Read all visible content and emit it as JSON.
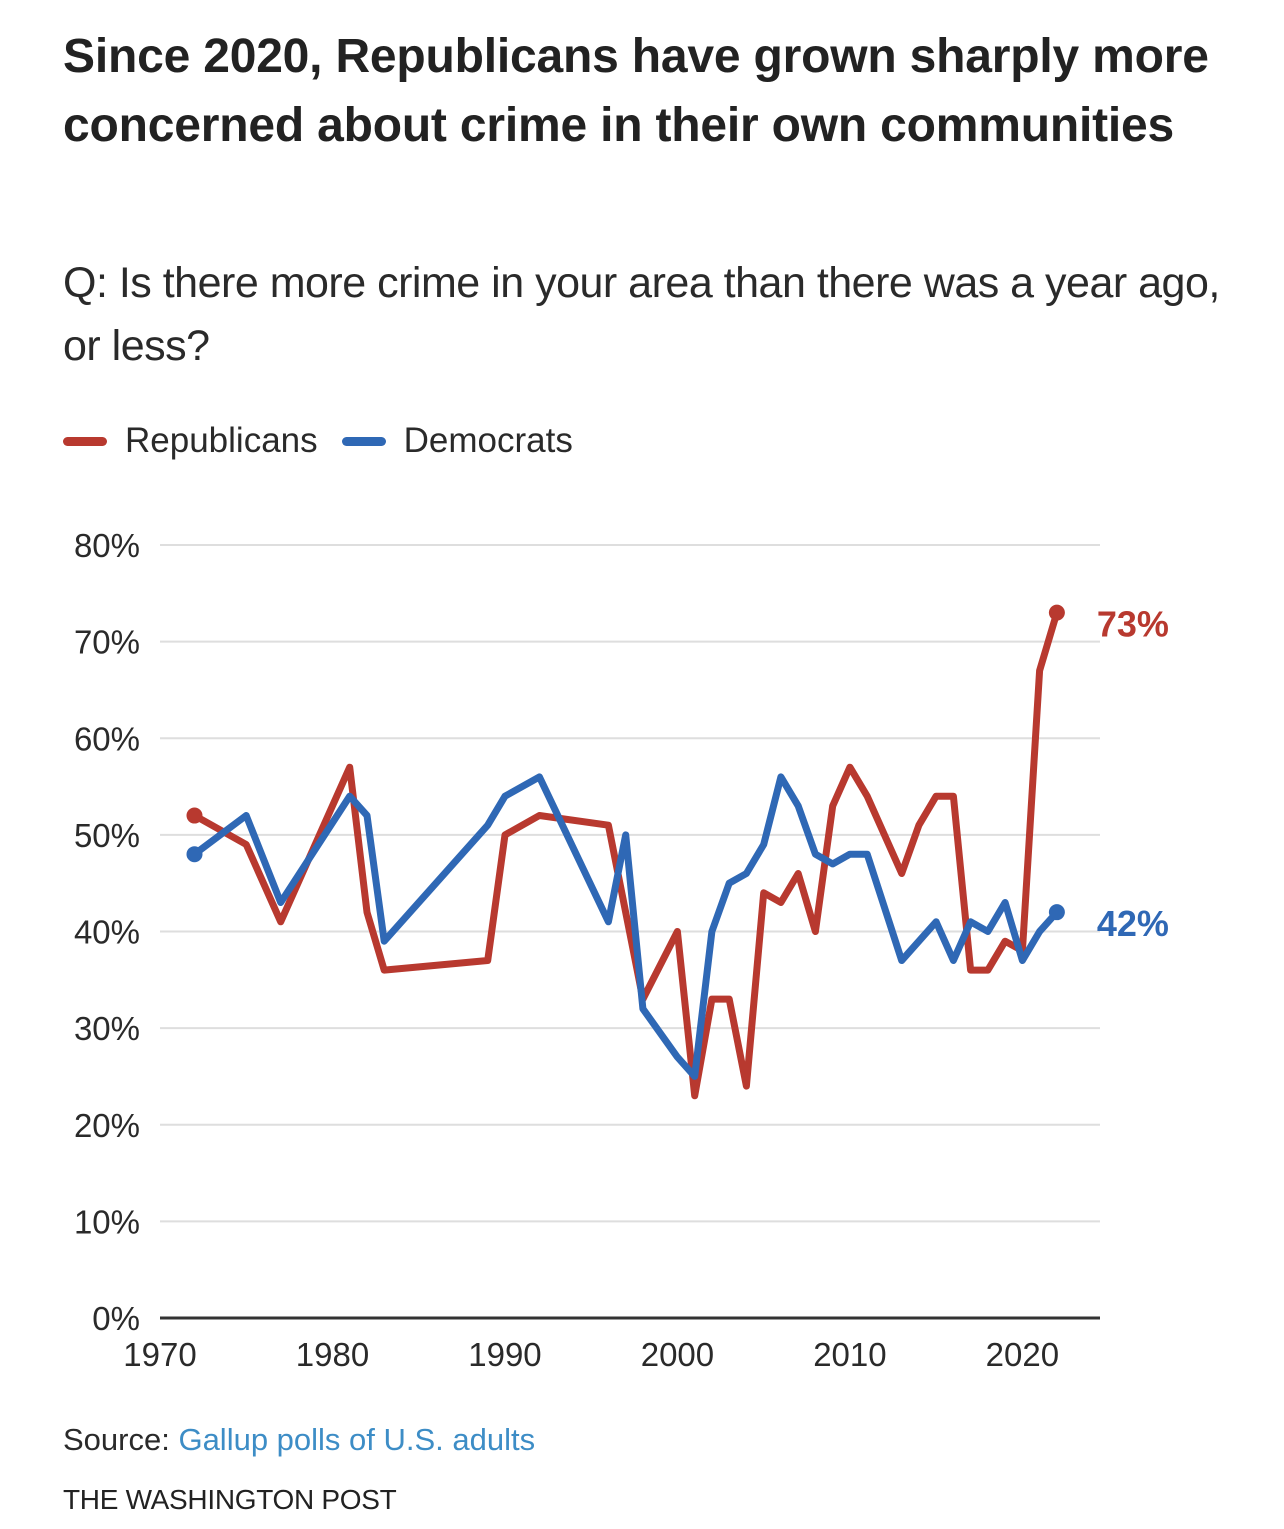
{
  "title": "Since 2020, Republicans have grown sharply more concerned about crime in their own communities",
  "subtitle": "Q: Is there more crime in your area than there was a year ago, or less?",
  "legend": [
    {
      "label": "Republicans",
      "color": "#b8392f"
    },
    {
      "label": "Democrats",
      "color": "#2f68b5"
    }
  ],
  "source": {
    "label": "Source: ",
    "link_text": "Gallup polls of U.S. adults"
  },
  "credit": "THE WASHINGTON POST",
  "chart_data": {
    "type": "line",
    "title": "Since 2020, Republicans have grown sharply more concerned about crime in their own communities",
    "subtitle": "Q: Is there more crime in your area than there was a year ago, or less?",
    "xlabel": "",
    "ylabel": "",
    "xlim": [
      1970,
      2024.5
    ],
    "ylim": [
      0,
      80
    ],
    "x_ticks": [
      1970,
      1980,
      1990,
      2000,
      2010,
      2020
    ],
    "x_tick_labels": [
      "1970",
      "1980",
      "1990",
      "2000",
      "2010",
      "2020"
    ],
    "y_ticks": [
      0,
      10,
      20,
      30,
      40,
      50,
      60,
      70,
      80
    ],
    "y_tick_labels": [
      "0%",
      "10%",
      "20%",
      "30%",
      "40%",
      "50%",
      "60%",
      "70%",
      "80%"
    ],
    "grid": true,
    "legend_position": "top-left",
    "series": [
      {
        "name": "Republicans",
        "color": "#b8392f",
        "end_label": "73%",
        "points": [
          [
            1972,
            52
          ],
          [
            1975,
            49
          ],
          [
            1977,
            41
          ],
          [
            1981,
            57
          ],
          [
            1982,
            42
          ],
          [
            1983,
            36
          ],
          [
            1989,
            37
          ],
          [
            1990,
            50
          ],
          [
            1992,
            52
          ],
          [
            1996,
            51
          ],
          [
            1998,
            33
          ],
          [
            2000,
            40
          ],
          [
            2001,
            23
          ],
          [
            2002,
            33
          ],
          [
            2003,
            33
          ],
          [
            2004,
            24
          ],
          [
            2005,
            44
          ],
          [
            2006,
            43
          ],
          [
            2007,
            46
          ],
          [
            2008,
            40
          ],
          [
            2009,
            53
          ],
          [
            2010,
            57
          ],
          [
            2011,
            54
          ],
          [
            2013,
            46
          ],
          [
            2014,
            51
          ],
          [
            2015,
            54
          ],
          [
            2016,
            54
          ],
          [
            2017,
            36
          ],
          [
            2018,
            36
          ],
          [
            2019,
            39
          ],
          [
            2020,
            38
          ],
          [
            2021,
            67
          ],
          [
            2022,
            73
          ]
        ]
      },
      {
        "name": "Democrats",
        "color": "#2f68b5",
        "end_label": "42%",
        "points": [
          [
            1972,
            48
          ],
          [
            1975,
            52
          ],
          [
            1977,
            43
          ],
          [
            1981,
            54
          ],
          [
            1982,
            52
          ],
          [
            1983,
            39
          ],
          [
            1989,
            51
          ],
          [
            1990,
            54
          ],
          [
            1992,
            56
          ],
          [
            1996,
            41
          ],
          [
            1997,
            50
          ],
          [
            1998,
            32
          ],
          [
            2000,
            27
          ],
          [
            2001,
            25
          ],
          [
            2002,
            40
          ],
          [
            2003,
            45
          ],
          [
            2004,
            46
          ],
          [
            2005,
            49
          ],
          [
            2006,
            56
          ],
          [
            2007,
            53
          ],
          [
            2008,
            48
          ],
          [
            2009,
            47
          ],
          [
            2010,
            48
          ],
          [
            2011,
            48
          ],
          [
            2013,
            37
          ],
          [
            2015,
            41
          ],
          [
            2016,
            37
          ],
          [
            2017,
            41
          ],
          [
            2018,
            40
          ],
          [
            2019,
            43
          ],
          [
            2020,
            37
          ],
          [
            2021,
            40
          ],
          [
            2022,
            42
          ]
        ]
      }
    ]
  }
}
